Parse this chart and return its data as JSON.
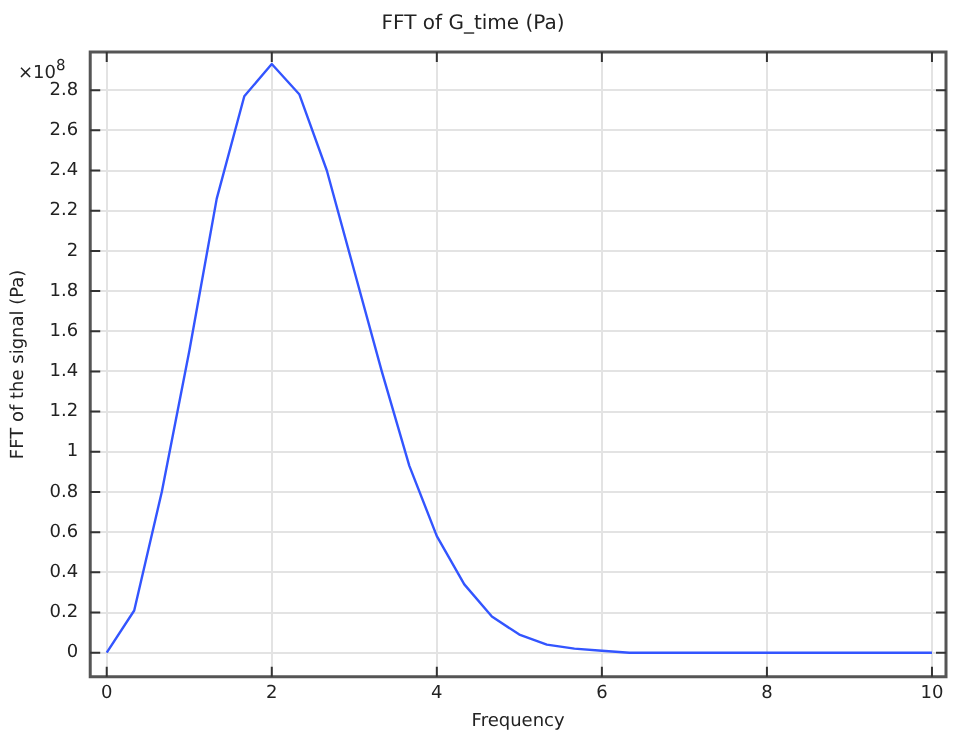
{
  "chart_data": {
    "type": "line",
    "title": "FFT of G_time (Pa)",
    "xlabel": "Frequency",
    "ylabel": "FFT of the signal (Pa)",
    "annotations": [
      "×10$^{8}$"
    ],
    "x": [
      0,
      0.333,
      0.667,
      1,
      1.333,
      1.667,
      2,
      2.333,
      2.667,
      3,
      3.333,
      3.667,
      4,
      4.333,
      4.667,
      5,
      5.333,
      5.667,
      6,
      6.333,
      6.667,
      7,
      7.333,
      7.667,
      8,
      8.333,
      8.667,
      9,
      9.333,
      9.667,
      10
    ],
    "series": [
      {
        "color": "#3355ff",
        "values": [
          0,
          0.21,
          0.8,
          1.5,
          2.26,
          2.77,
          2.93,
          2.78,
          2.4,
          1.9,
          1.4,
          0.93,
          0.58,
          0.34,
          0.18,
          0.09,
          0.04,
          0.02,
          0.01,
          0,
          0,
          0,
          0,
          0,
          0,
          0,
          0,
          0,
          0,
          0,
          0
        ]
      }
    ],
    "xlim": [
      -0.2,
      10.17
    ],
    "xticks": [
      0,
      2,
      4,
      6,
      8,
      10
    ],
    "ylim": [
      -0.12,
      2.99
    ],
    "yticks": [
      0,
      0.2,
      0.4,
      0.6,
      0.8,
      1,
      1.2,
      1.4,
      1.6,
      1.8,
      2,
      2.2,
      2.4,
      2.6,
      2.8
    ],
    "grid": true,
    "legend": false,
    "marker": "none",
    "line_style": "solid"
  }
}
